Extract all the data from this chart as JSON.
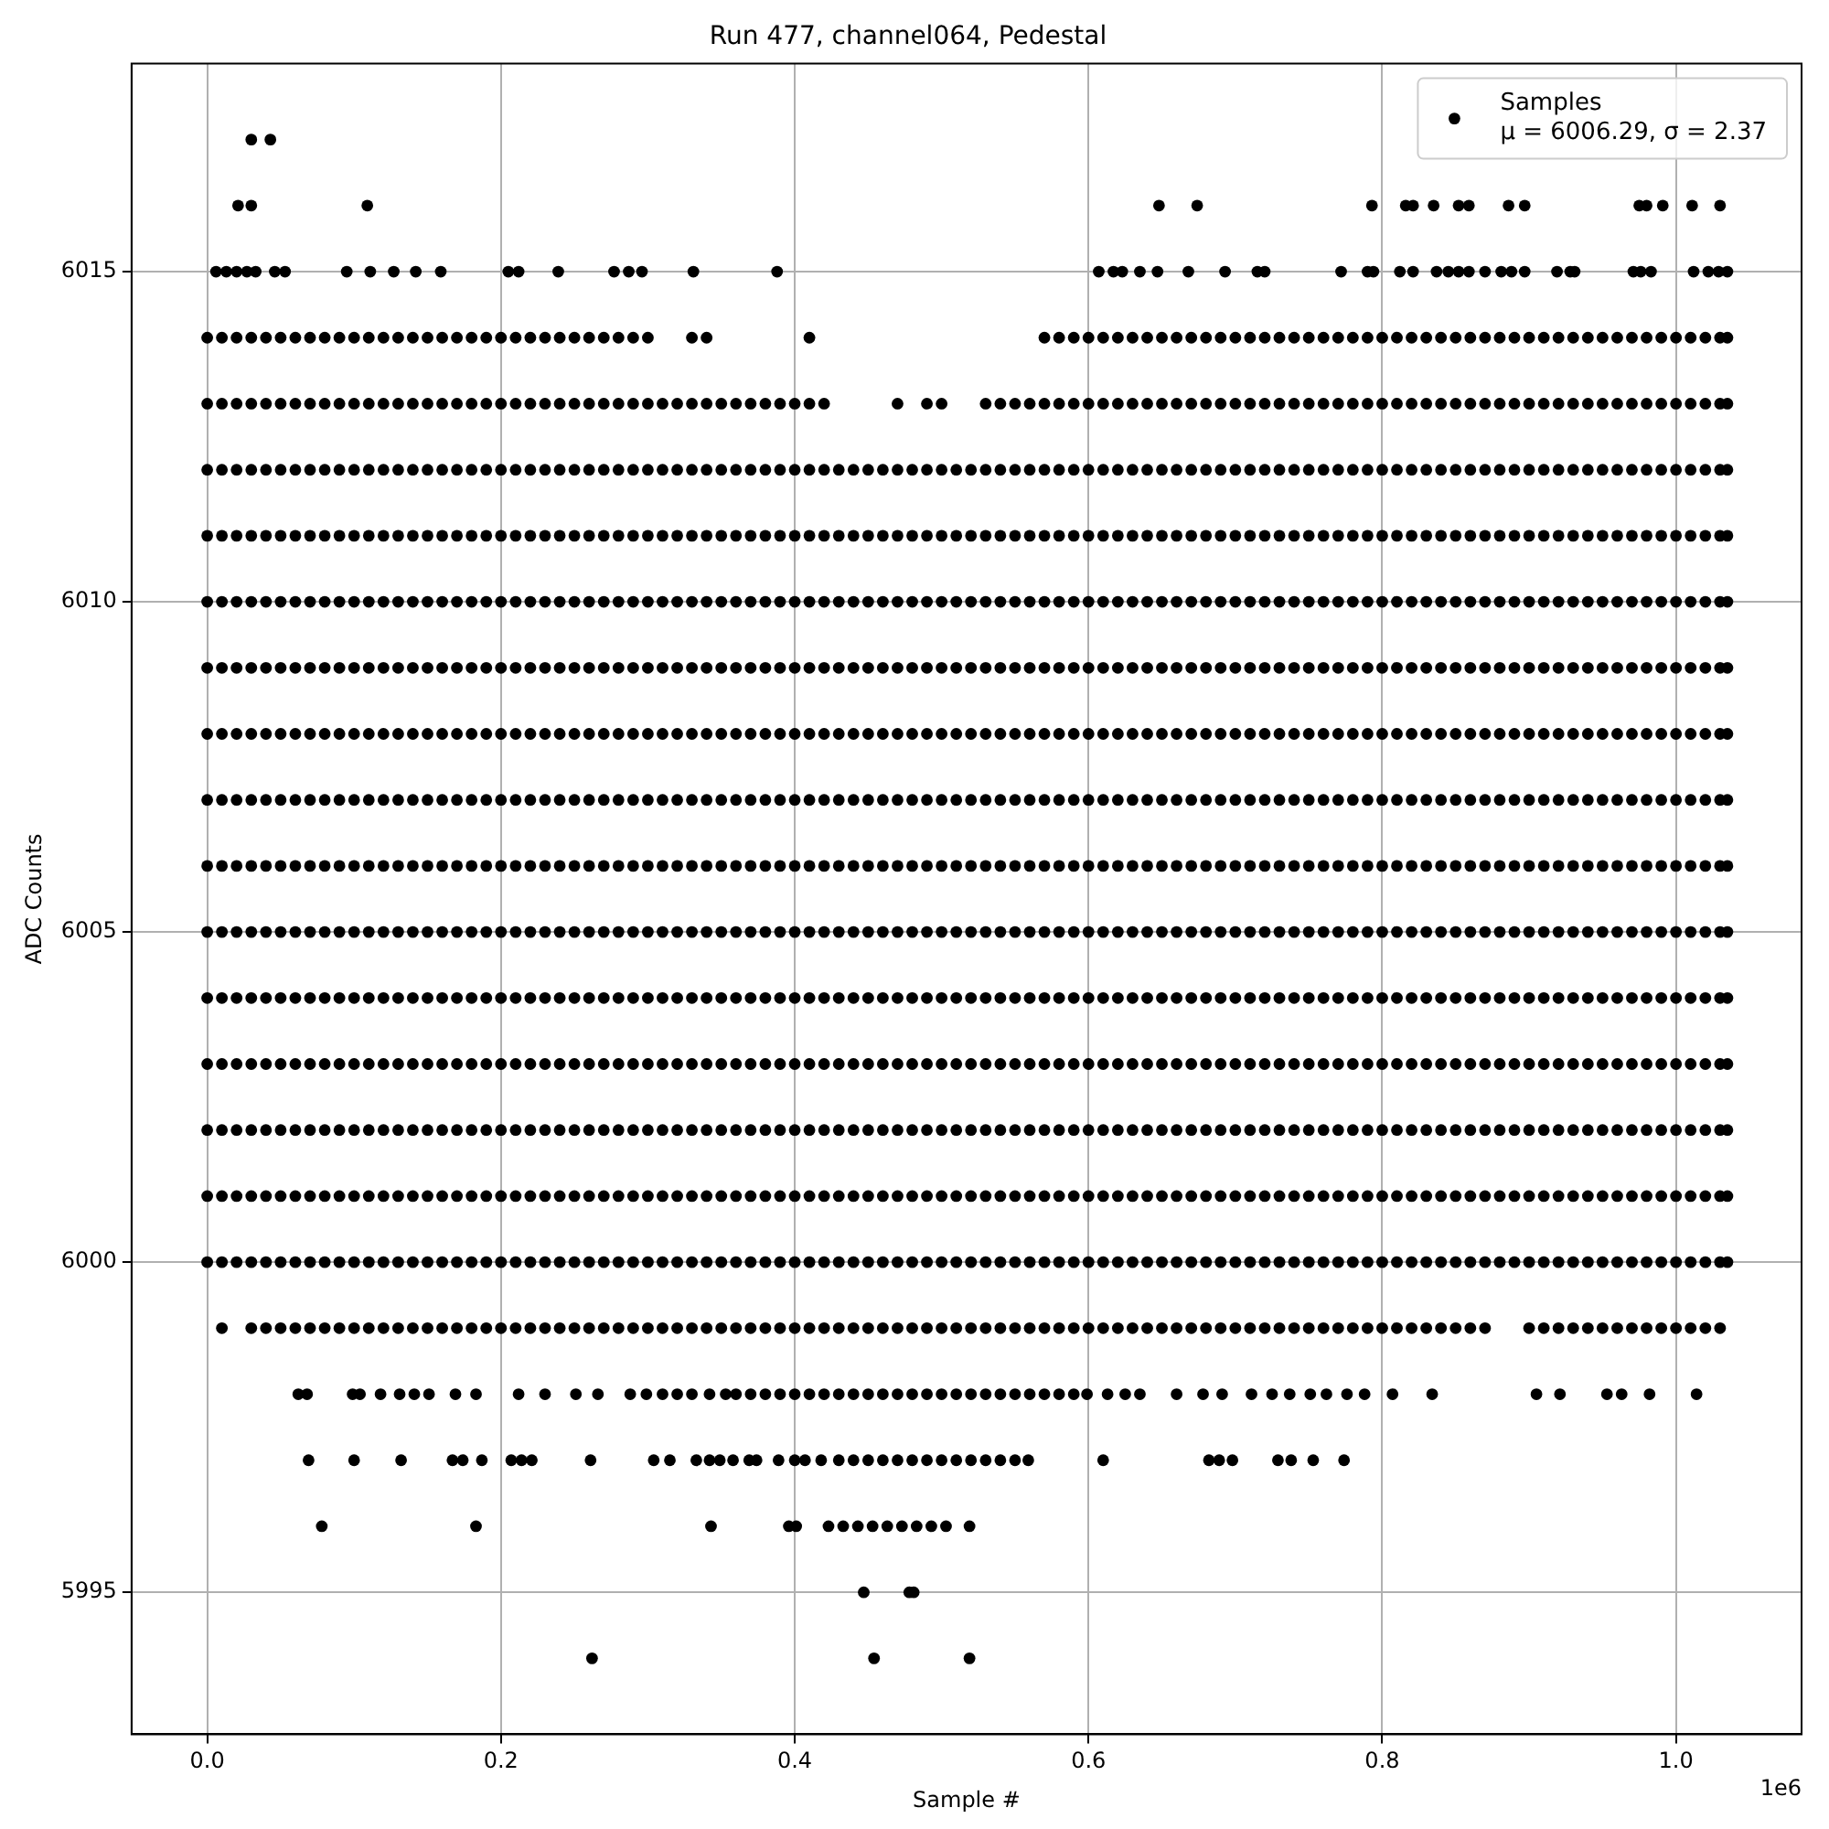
{
  "chart_data": {
    "type": "scatter",
    "title": "Run 477, channel064, Pedestal",
    "xlabel": "Sample #",
    "ylabel": "ADC Counts",
    "legend": "top right",
    "marker": "circle",
    "grid": true,
    "xlim": [
      -0.0515,
      1.0855
    ],
    "ylim": [
      5992.85,
      6018.15
    ],
    "xticks": [
      {
        "value": 0,
        "label": "0.0"
      },
      0.2,
      0.4,
      0.6,
      0.8,
      {
        "value": 1,
        "label": "1.0"
      }
    ],
    "yticks": [
      5995,
      6000,
      6005,
      6010,
      6015
    ],
    "annotations": [
      "1e6",
      "μ = 6006.29, σ = 2.37"
    ],
    "x": [
      0,
      0.01,
      0.02,
      0.03,
      0.04,
      0.05,
      0.06,
      0.07,
      0.08,
      0.09,
      0.1,
      0.11,
      0.12,
      0.13,
      0.14,
      0.15,
      0.16,
      0.17,
      0.18,
      0.19,
      0.2,
      0.21,
      0.22,
      0.23,
      0.24,
      0.25,
      0.26,
      0.27,
      0.28,
      0.29,
      0.3,
      0.31,
      0.32,
      0.33,
      0.34,
      0.35,
      0.36,
      0.37,
      0.38,
      0.39,
      0.4,
      0.41,
      0.42,
      0.43,
      0.44,
      0.45,
      0.46,
      0.47,
      0.48,
      0.49,
      0.5,
      0.51,
      0.52,
      0.53,
      0.54,
      0.55,
      0.56,
      0.57,
      0.58,
      0.59,
      0.6,
      0.61,
      0.62,
      0.63,
      0.64,
      0.65,
      0.66,
      0.67,
      0.68,
      0.69,
      0.7,
      0.71,
      0.72,
      0.73,
      0.74,
      0.75,
      0.76,
      0.77,
      0.78,
      0.79,
      0.8,
      0.81,
      0.82,
      0.83,
      0.84,
      0.85,
      0.86,
      0.87,
      0.88,
      0.89,
      0.9,
      0.91,
      0.92,
      0.93,
      0.94,
      0.95,
      0.96,
      0.97,
      0.98,
      0.99,
      1,
      1.01,
      1.02,
      1.03,
      1.035
    ],
    "series": [
      {
        "name": "Samples",
        "color": "#000000",
        "values": [
          6007,
          6007,
          6007,
          6007,
          6007,
          6007,
          6007,
          6007,
          6007,
          6007,
          6007,
          6007,
          6007,
          6007,
          6007,
          6007,
          6007,
          6007,
          6007,
          6007,
          6007,
          6007,
          6007,
          6007,
          6007,
          6007,
          6007,
          6007,
          6007,
          6007,
          6007,
          6007,
          6007,
          6007,
          6007,
          6007,
          6007,
          6007,
          6007,
          6007,
          6007,
          6007,
          6007,
          6007,
          6007,
          6007,
          6007,
          6007,
          6007,
          6007,
          6007,
          6007,
          6007,
          6007,
          6007,
          6007,
          6007,
          6007,
          6007,
          6007,
          6007,
          6007,
          6007,
          6007,
          6007,
          6007,
          6007,
          6007,
          6007,
          6007,
          6007,
          6007,
          6007,
          6007,
          6007,
          6007,
          6007,
          6007,
          6007,
          6007,
          6007,
          6007,
          6007,
          6007,
          6007,
          6007,
          6007,
          6007,
          6007,
          6007,
          6007,
          6007,
          6007,
          6007,
          6007,
          6007,
          6007,
          6007,
          6007,
          6007,
          6007,
          6007,
          6007,
          6007,
          6007
        ]
      },
      {
        "color": "#000000",
        "values": [
          6012,
          6012,
          6012,
          6012,
          6012,
          6012,
          6012,
          6012,
          6012,
          6012,
          6012,
          6012,
          6012,
          6012,
          6012,
          6012,
          6012,
          6012,
          6012,
          6012,
          6012,
          6012,
          6012,
          6012,
          6012,
          6012,
          6012,
          6012,
          6012,
          6012,
          6012,
          6012,
          6012,
          6012,
          6012,
          6012,
          6012,
          6012,
          6012,
          6012,
          6012,
          6012,
          6012,
          6012,
          6012,
          6012,
          6012,
          6012,
          6012,
          6012,
          6012,
          6012,
          6012,
          6012,
          6012,
          6012,
          6012,
          6012,
          6012,
          6012,
          6012,
          6012,
          6012,
          6012,
          6012,
          6012,
          6012,
          6012,
          6012,
          6012,
          6012,
          6012,
          6012,
          6012,
          6012,
          6012,
          6012,
          6012,
          6012,
          6012,
          6012,
          6012,
          6012,
          6012,
          6012,
          6012,
          6012,
          6012,
          6012,
          6012,
          6012,
          6012,
          6012,
          6012,
          6012,
          6012,
          6012,
          6012,
          6012,
          6012,
          6012,
          6012,
          6012,
          6012,
          6012
        ]
      },
      {
        "color": "#000000",
        "values": [
          6011,
          6011,
          6011,
          6011,
          6011,
          6011,
          6011,
          6011,
          6011,
          6011,
          6011,
          6011,
          6011,
          6011,
          6011,
          6011,
          6011,
          6011,
          6011,
          6011,
          6011,
          6011,
          6011,
          6011,
          6011,
          6011,
          6011,
          6011,
          6011,
          6011,
          6011,
          6011,
          6011,
          6011,
          6011,
          6011,
          6011,
          6011,
          6011,
          6011,
          6011,
          6011,
          6011,
          6011,
          6011,
          6011,
          6011,
          6011,
          6011,
          6011,
          6011,
          6011,
          6011,
          6011,
          6011,
          6011,
          6011,
          6011,
          6011,
          6011,
          6011,
          6011,
          6011,
          6011,
          6011,
          6011,
          6011,
          6011,
          6011,
          6011,
          6011,
          6011,
          6011,
          6011,
          6011,
          6011,
          6011,
          6011,
          6011,
          6011,
          6011,
          6011,
          6011,
          6011,
          6011,
          6011,
          6011,
          6011,
          6011,
          6011,
          6011,
          6011,
          6011,
          6011,
          6011,
          6011,
          6011,
          6011,
          6011,
          6011,
          6011,
          6011,
          6011,
          6011,
          6011
        ]
      },
      {
        "color": "#000000",
        "values": [
          6010,
          6010,
          6010,
          6010,
          6010,
          6010,
          6010,
          6010,
          6010,
          6010,
          6010,
          6010,
          6010,
          6010,
          6010,
          6010,
          6010,
          6010,
          6010,
          6010,
          6010,
          6010,
          6010,
          6010,
          6010,
          6010,
          6010,
          6010,
          6010,
          6010,
          6010,
          6010,
          6010,
          6010,
          6010,
          6010,
          6010,
          6010,
          6010,
          6010,
          6010,
          6010,
          6010,
          6010,
          6010,
          6010,
          6010,
          6010,
          6010,
          6010,
          6010,
          6010,
          6010,
          6010,
          6010,
          6010,
          6010,
          6010,
          6010,
          6010,
          6010,
          6010,
          6010,
          6010,
          6010,
          6010,
          6010,
          6010,
          6010,
          6010,
          6010,
          6010,
          6010,
          6010,
          6010,
          6010,
          6010,
          6010,
          6010,
          6010,
          6010,
          6010,
          6010,
          6010,
          6010,
          6010,
          6010,
          6010,
          6010,
          6010,
          6010,
          6010,
          6010,
          6010,
          6010,
          6010,
          6010,
          6010,
          6010,
          6010,
          6010,
          6010,
          6010,
          6010,
          6010
        ]
      },
      {
        "color": "#000000",
        "values": [
          6009,
          6009,
          6009,
          6009,
          6009,
          6009,
          6009,
          6009,
          6009,
          6009,
          6009,
          6009,
          6009,
          6009,
          6009,
          6009,
          6009,
          6009,
          6009,
          6009,
          6009,
          6009,
          6009,
          6009,
          6009,
          6009,
          6009,
          6009,
          6009,
          6009,
          6009,
          6009,
          6009,
          6009,
          6009,
          6009,
          6009,
          6009,
          6009,
          6009,
          6009,
          6009,
          6009,
          6009,
          6009,
          6009,
          6009,
          6009,
          6009,
          6009,
          6009,
          6009,
          6009,
          6009,
          6009,
          6009,
          6009,
          6009,
          6009,
          6009,
          6009,
          6009,
          6009,
          6009,
          6009,
          6009,
          6009,
          6009,
          6009,
          6009,
          6009,
          6009,
          6009,
          6009,
          6009,
          6009,
          6009,
          6009,
          6009,
          6009,
          6009,
          6009,
          6009,
          6009,
          6009,
          6009,
          6009,
          6009,
          6009,
          6009,
          6009,
          6009,
          6009,
          6009,
          6009,
          6009,
          6009,
          6009,
          6009,
          6009,
          6009,
          6009,
          6009,
          6009,
          6009
        ]
      },
      {
        "color": "#000000",
        "values": [
          6008,
          6008,
          6008,
          6008,
          6008,
          6008,
          6008,
          6008,
          6008,
          6008,
          6008,
          6008,
          6008,
          6008,
          6008,
          6008,
          6008,
          6008,
          6008,
          6008,
          6008,
          6008,
          6008,
          6008,
          6008,
          6008,
          6008,
          6008,
          6008,
          6008,
          6008,
          6008,
          6008,
          6008,
          6008,
          6008,
          6008,
          6008,
          6008,
          6008,
          6008,
          6008,
          6008,
          6008,
          6008,
          6008,
          6008,
          6008,
          6008,
          6008,
          6008,
          6008,
          6008,
          6008,
          6008,
          6008,
          6008,
          6008,
          6008,
          6008,
          6008,
          6008,
          6008,
          6008,
          6008,
          6008,
          6008,
          6008,
          6008,
          6008,
          6008,
          6008,
          6008,
          6008,
          6008,
          6008,
          6008,
          6008,
          6008,
          6008,
          6008,
          6008,
          6008,
          6008,
          6008,
          6008,
          6008,
          6008,
          6008,
          6008,
          6008,
          6008,
          6008,
          6008,
          6008,
          6008,
          6008,
          6008,
          6008,
          6008,
          6008,
          6008,
          6008,
          6008,
          6008
        ]
      },
      {
        "color": "#000000",
        "values": [
          6006,
          6006,
          6006,
          6006,
          6006,
          6006,
          6006,
          6006,
          6006,
          6006,
          6006,
          6006,
          6006,
          6006,
          6006,
          6006,
          6006,
          6006,
          6006,
          6006,
          6006,
          6006,
          6006,
          6006,
          6006,
          6006,
          6006,
          6006,
          6006,
          6006,
          6006,
          6006,
          6006,
          6006,
          6006,
          6006,
          6006,
          6006,
          6006,
          6006,
          6006,
          6006,
          6006,
          6006,
          6006,
          6006,
          6006,
          6006,
          6006,
          6006,
          6006,
          6006,
          6006,
          6006,
          6006,
          6006,
          6006,
          6006,
          6006,
          6006,
          6006,
          6006,
          6006,
          6006,
          6006,
          6006,
          6006,
          6006,
          6006,
          6006,
          6006,
          6006,
          6006,
          6006,
          6006,
          6006,
          6006,
          6006,
          6006,
          6006,
          6006,
          6006,
          6006,
          6006,
          6006,
          6006,
          6006,
          6006,
          6006,
          6006,
          6006,
          6006,
          6006,
          6006,
          6006,
          6006,
          6006,
          6006,
          6006,
          6006,
          6006,
          6006,
          6006,
          6006,
          6006
        ]
      },
      {
        "color": "#000000",
        "values": [
          6005,
          6005,
          6005,
          6005,
          6005,
          6005,
          6005,
          6005,
          6005,
          6005,
          6005,
          6005,
          6005,
          6005,
          6005,
          6005,
          6005,
          6005,
          6005,
          6005,
          6005,
          6005,
          6005,
          6005,
          6005,
          6005,
          6005,
          6005,
          6005,
          6005,
          6005,
          6005,
          6005,
          6005,
          6005,
          6005,
          6005,
          6005,
          6005,
          6005,
          6005,
          6005,
          6005,
          6005,
          6005,
          6005,
          6005,
          6005,
          6005,
          6005,
          6005,
          6005,
          6005,
          6005,
          6005,
          6005,
          6005,
          6005,
          6005,
          6005,
          6005,
          6005,
          6005,
          6005,
          6005,
          6005,
          6005,
          6005,
          6005,
          6005,
          6005,
          6005,
          6005,
          6005,
          6005,
          6005,
          6005,
          6005,
          6005,
          6005,
          6005,
          6005,
          6005,
          6005,
          6005,
          6005,
          6005,
          6005,
          6005,
          6005,
          6005,
          6005,
          6005,
          6005,
          6005,
          6005,
          6005,
          6005,
          6005,
          6005,
          6005,
          6005,
          6005,
          6005,
          6005
        ]
      },
      {
        "color": "#000000",
        "values": [
          6004,
          6004,
          6004,
          6004,
          6004,
          6004,
          6004,
          6004,
          6004,
          6004,
          6004,
          6004,
          6004,
          6004,
          6004,
          6004,
          6004,
          6004,
          6004,
          6004,
          6004,
          6004,
          6004,
          6004,
          6004,
          6004,
          6004,
          6004,
          6004,
          6004,
          6004,
          6004,
          6004,
          6004,
          6004,
          6004,
          6004,
          6004,
          6004,
          6004,
          6004,
          6004,
          6004,
          6004,
          6004,
          6004,
          6004,
          6004,
          6004,
          6004,
          6004,
          6004,
          6004,
          6004,
          6004,
          6004,
          6004,
          6004,
          6004,
          6004,
          6004,
          6004,
          6004,
          6004,
          6004,
          6004,
          6004,
          6004,
          6004,
          6004,
          6004,
          6004,
          6004,
          6004,
          6004,
          6004,
          6004,
          6004,
          6004,
          6004,
          6004,
          6004,
          6004,
          6004,
          6004,
          6004,
          6004,
          6004,
          6004,
          6004,
          6004,
          6004,
          6004,
          6004,
          6004,
          6004,
          6004,
          6004,
          6004,
          6004,
          6004,
          6004,
          6004,
          6004,
          6004
        ]
      },
      {
        "color": "#000000",
        "values": [
          6003,
          6003,
          6003,
          6003,
          6003,
          6003,
          6003,
          6003,
          6003,
          6003,
          6003,
          6003,
          6003,
          6003,
          6003,
          6003,
          6003,
          6003,
          6003,
          6003,
          6003,
          6003,
          6003,
          6003,
          6003,
          6003,
          6003,
          6003,
          6003,
          6003,
          6003,
          6003,
          6003,
          6003,
          6003,
          6003,
          6003,
          6003,
          6003,
          6003,
          6003,
          6003,
          6003,
          6003,
          6003,
          6003,
          6003,
          6003,
          6003,
          6003,
          6003,
          6003,
          6003,
          6003,
          6003,
          6003,
          6003,
          6003,
          6003,
          6003,
          6003,
          6003,
          6003,
          6003,
          6003,
          6003,
          6003,
          6003,
          6003,
          6003,
          6003,
          6003,
          6003,
          6003,
          6003,
          6003,
          6003,
          6003,
          6003,
          6003,
          6003,
          6003,
          6003,
          6003,
          6003,
          6003,
          6003,
          6003,
          6003,
          6003,
          6003,
          6003,
          6003,
          6003,
          6003,
          6003,
          6003,
          6003,
          6003,
          6003,
          6003,
          6003,
          6003,
          6003,
          6003
        ]
      },
      {
        "color": "#000000",
        "values": [
          6002,
          6002,
          6002,
          6002,
          6002,
          6002,
          6002,
          6002,
          6002,
          6002,
          6002,
          6002,
          6002,
          6002,
          6002,
          6002,
          6002,
          6002,
          6002,
          6002,
          6002,
          6002,
          6002,
          6002,
          6002,
          6002,
          6002,
          6002,
          6002,
          6002,
          6002,
          6002,
          6002,
          6002,
          6002,
          6002,
          6002,
          6002,
          6002,
          6002,
          6002,
          6002,
          6002,
          6002,
          6002,
          6002,
          6002,
          6002,
          6002,
          6002,
          6002,
          6002,
          6002,
          6002,
          6002,
          6002,
          6002,
          6002,
          6002,
          6002,
          6002,
          6002,
          6002,
          6002,
          6002,
          6002,
          6002,
          6002,
          6002,
          6002,
          6002,
          6002,
          6002,
          6002,
          6002,
          6002,
          6002,
          6002,
          6002,
          6002,
          6002,
          6002,
          6002,
          6002,
          6002,
          6002,
          6002,
          6002,
          6002,
          6002,
          6002,
          6002,
          6002,
          6002,
          6002,
          6002,
          6002,
          6002,
          6002,
          6002,
          6002,
          6002,
          6002,
          6002,
          6002
        ]
      },
      {
        "color": "#000000",
        "values": [
          6001,
          6001,
          6001,
          6001,
          6001,
          6001,
          6001,
          6001,
          6001,
          6001,
          6001,
          6001,
          6001,
          6001,
          6001,
          6001,
          6001,
          6001,
          6001,
          6001,
          6001,
          6001,
          6001,
          6001,
          6001,
          6001,
          6001,
          6001,
          6001,
          6001,
          6001,
          6001,
          6001,
          6001,
          6001,
          6001,
          6001,
          6001,
          6001,
          6001,
          6001,
          6001,
          6001,
          6001,
          6001,
          6001,
          6001,
          6001,
          6001,
          6001,
          6001,
          6001,
          6001,
          6001,
          6001,
          6001,
          6001,
          6001,
          6001,
          6001,
          6001,
          6001,
          6001,
          6001,
          6001,
          6001,
          6001,
          6001,
          6001,
          6001,
          6001,
          6001,
          6001,
          6001,
          6001,
          6001,
          6001,
          6001,
          6001,
          6001,
          6001,
          6001,
          6001,
          6001,
          6001,
          6001,
          6001,
          6001,
          6001,
          6001,
          6001,
          6001,
          6001,
          6001,
          6001,
          6001,
          6001,
          6001,
          6001,
          6001,
          6001,
          6001,
          6001,
          6001,
          6001
        ]
      },
      {
        "color": "#000000",
        "values": [
          6000,
          6000,
          6000,
          6000,
          6000,
          6000,
          6000,
          6000,
          6000,
          6000,
          6000,
          6000,
          6000,
          6000,
          6000,
          6000,
          6000,
          6000,
          6000,
          6000,
          6000,
          6000,
          6000,
          6000,
          6000,
          6000,
          6000,
          6000,
          6000,
          6000,
          6000,
          6000,
          6000,
          6000,
          6000,
          6000,
          6000,
          6000,
          6000,
          6000,
          6000,
          6000,
          6000,
          6000,
          6000,
          6000,
          6000,
          6000,
          6000,
          6000,
          6000,
          6000,
          6000,
          6000,
          6000,
          6000,
          6000,
          6000,
          6000,
          6000,
          6000,
          6000,
          6000,
          6000,
          6000,
          6000,
          6000,
          6000,
          6000,
          6000,
          6000,
          6000,
          6000,
          6000,
          6000,
          6000,
          6000,
          6000,
          6000,
          6000,
          6000,
          6000,
          6000,
          6000,
          6000,
          6000,
          6000,
          6000,
          6000,
          6000,
          6000,
          6000,
          6000,
          6000,
          6000,
          6000,
          6000,
          6000,
          6000,
          6000,
          6000,
          6000,
          6000,
          6000,
          6000
        ]
      },
      {
        "color": "#000000",
        "values": [
          6013,
          6013,
          6013,
          6013,
          6013,
          6013,
          6013,
          6013,
          6013,
          6013,
          6013,
          6013,
          6013,
          6013,
          6013,
          6013,
          6013,
          6013,
          6013,
          6013,
          6013,
          6013,
          6013,
          6013,
          6013,
          6013,
          6013,
          6013,
          6013,
          6013,
          6013,
          6013,
          6013,
          6013,
          6013,
          6013,
          6013,
          6013,
          6013,
          6013,
          6013,
          6013,
          6013,
          null,
          null,
          null,
          null,
          6013,
          null,
          6013,
          6013,
          null,
          null,
          6013,
          6013,
          6013,
          6013,
          6013,
          6013,
          6013,
          6013,
          6013,
          6013,
          6013,
          6013,
          6013,
          6013,
          6013,
          6013,
          6013,
          6013,
          6013,
          6013,
          6013,
          6013,
          6013,
          6013,
          6013,
          6013,
          6013,
          6013,
          6013,
          6013,
          6013,
          6013,
          6013,
          6013,
          6013,
          6013,
          6013,
          6013,
          6013,
          6013,
          6013,
          6013,
          6013,
          6013,
          6013,
          6013,
          6013,
          6013,
          6013,
          6013,
          6013,
          6013
        ]
      },
      {
        "color": "#000000",
        "values": [
          6014,
          6014,
          6014,
          6014,
          6014,
          6014,
          6014,
          6014,
          6014,
          6014,
          6014,
          6014,
          6014,
          6014,
          6014,
          6014,
          6014,
          6014,
          6014,
          6014,
          6014,
          6014,
          6014,
          6014,
          6014,
          6014,
          6014,
          6014,
          6014,
          6014,
          6014,
          null,
          null,
          6014,
          6014,
          null,
          null,
          null,
          null,
          null,
          null,
          6014,
          null,
          null,
          null,
          null,
          null,
          null,
          null,
          null,
          null,
          null,
          null,
          null,
          null,
          null,
          null,
          6014,
          6014,
          6014,
          6014,
          6014,
          6014,
          6014,
          6014,
          6014,
          6014,
          6014,
          6014,
          6014,
          6014,
          6014,
          6014,
          6014,
          6014,
          6014,
          6014,
          6014,
          6014,
          6014,
          6014,
          6014,
          6014,
          6014,
          6014,
          6014,
          6014,
          6014,
          6014,
          6014,
          6014,
          6014,
          6014,
          6014,
          6014,
          6014,
          6014,
          6014,
          6014,
          6014,
          6014,
          6014,
          6014,
          6014,
          6014
        ]
      },
      {
        "color": "#000000",
        "values": [
          null,
          5999,
          null,
          5999,
          5999,
          5999,
          5999,
          5999,
          5999,
          5999,
          5999,
          5999,
          5999,
          5999,
          5999,
          5999,
          5999,
          5999,
          5999,
          5999,
          5999,
          5999,
          5999,
          5999,
          5999,
          5999,
          5999,
          5999,
          5999,
          5999,
          5999,
          5999,
          5999,
          5999,
          5999,
          5999,
          5999,
          5999,
          5999,
          5999,
          5999,
          5999,
          5999,
          5999,
          5999,
          5999,
          5999,
          5999,
          5999,
          5999,
          5999,
          5999,
          5999,
          5999,
          5999,
          5999,
          5999,
          5999,
          5999,
          5999,
          5999,
          5999,
          5999,
          5999,
          5999,
          5999,
          5999,
          5999,
          5999,
          5999,
          5999,
          5999,
          5999,
          5999,
          5999,
          5999,
          5999,
          5999,
          5999,
          5999,
          5999,
          5999,
          5999,
          5999,
          5999,
          5999,
          5999,
          5999,
          null,
          null,
          5999,
          5999,
          5999,
          5999,
          5999,
          5999,
          5999,
          5999,
          5999,
          5999,
          5999,
          5999,
          5999,
          5999,
          null
        ]
      },
      {
        "color": "#000000",
        "x": [
          0.03,
          0.043
        ],
        "values": [
          6017,
          6017
        ]
      },
      {
        "color": "#000000",
        "x": [
          0.021,
          0.03,
          0.109,
          0.648,
          0.674,
          0.793,
          0.816,
          0.821,
          0.835,
          0.852,
          0.859,
          0.886,
          0.897,
          0.975,
          0.98,
          0.991,
          1.011,
          1.03
        ],
        "values": [
          6016,
          6016,
          6016,
          6016,
          6016,
          6016,
          6016,
          6016,
          6016,
          6016,
          6016,
          6016,
          6016,
          6016,
          6016,
          6016,
          6016,
          6016
        ]
      },
      {
        "color": "#000000",
        "x": [
          0.006,
          0.013,
          0.02,
          0.027,
          0.033,
          0.046,
          0.053,
          0.095,
          0.111,
          0.127,
          0.142,
          0.159,
          0.205,
          0.212,
          0.239,
          0.277,
          0.287,
          0.296,
          0.331,
          0.388,
          0.607,
          0.617,
          0.623,
          0.635,
          0.647,
          0.668,
          0.693,
          0.715,
          0.72,
          0.772,
          0.79,
          0.794,
          0.812,
          0.821,
          0.837,
          0.845,
          0.852,
          0.859,
          0.87,
          0.881,
          0.888,
          0.897,
          0.919,
          0.928,
          0.931,
          0.971,
          0.976,
          0.983,
          1.012,
          1.022,
          1.029,
          1.035
        ],
        "values": [
          6015,
          6015,
          6015,
          6015,
          6015,
          6015,
          6015,
          6015,
          6015,
          6015,
          6015,
          6015,
          6015,
          6015,
          6015,
          6015,
          6015,
          6015,
          6015,
          6015,
          6015,
          6015,
          6015,
          6015,
          6015,
          6015,
          6015,
          6015,
          6015,
          6015,
          6015,
          6015,
          6015,
          6015,
          6015,
          6015,
          6015,
          6015,
          6015,
          6015,
          6015,
          6015,
          6015,
          6015,
          6015,
          6015,
          6015,
          6015,
          6015,
          6015,
          6015,
          6015
        ]
      },
      {
        "color": "#000000",
        "x": [
          0.062,
          0.068,
          0.099,
          0.104,
          0.118,
          0.131,
          0.141,
          0.151,
          0.169,
          0.183,
          0.212,
          0.23,
          0.251,
          0.266,
          0.288,
          0.299,
          0.31,
          0.32,
          0.33,
          0.342,
          0.353,
          0.36,
          0.37,
          0.38,
          0.39,
          0.4,
          0.41,
          0.42,
          0.43,
          0.44,
          0.45,
          0.46,
          0.47,
          0.48,
          0.49,
          0.5,
          0.51,
          0.52,
          0.53,
          0.54,
          0.55,
          0.56,
          0.57,
          0.58,
          0.59,
          0.599,
          0.613,
          0.625,
          0.635,
          0.66,
          0.678,
          0.691,
          0.711,
          0.725,
          0.737,
          0.751,
          0.762,
          0.776,
          0.788,
          0.807,
          0.834,
          0.905,
          0.921,
          0.953,
          0.963,
          0.982,
          1.014
        ],
        "values": [
          5998,
          5998,
          5998,
          5998,
          5998,
          5998,
          5998,
          5998,
          5998,
          5998,
          5998,
          5998,
          5998,
          5998,
          5998,
          5998,
          5998,
          5998,
          5998,
          5998,
          5998,
          5998,
          5998,
          5998,
          5998,
          5998,
          5998,
          5998,
          5998,
          5998,
          5998,
          5998,
          5998,
          5998,
          5998,
          5998,
          5998,
          5998,
          5998,
          5998,
          5998,
          5998,
          5998,
          5998,
          5998,
          5998,
          5998,
          5998,
          5998,
          5998,
          5998,
          5998,
          5998,
          5998,
          5998,
          5998,
          5998,
          5998,
          5998,
          5998,
          5998,
          5998,
          5998,
          5998,
          5998,
          5998,
          5998
        ]
      },
      {
        "color": "#000000",
        "x": [
          0.069,
          0.1,
          0.132,
          0.167,
          0.174,
          0.187,
          0.207,
          0.214,
          0.221,
          0.261,
          0.304,
          0.315,
          0.333,
          0.342,
          0.349,
          0.358,
          0.369,
          0.374,
          0.389,
          0.4,
          0.407,
          0.418,
          0.43,
          0.44,
          0.45,
          0.46,
          0.47,
          0.48,
          0.49,
          0.5,
          0.51,
          0.52,
          0.53,
          0.54,
          0.55,
          0.559,
          0.61,
          0.682,
          0.689,
          0.698,
          0.729,
          0.738,
          0.753,
          0.774
        ],
        "values": [
          5997,
          5997,
          5997,
          5997,
          5997,
          5997,
          5997,
          5997,
          5997,
          5997,
          5997,
          5997,
          5997,
          5997,
          5997,
          5997,
          5997,
          5997,
          5997,
          5997,
          5997,
          5997,
          5997,
          5997,
          5997,
          5997,
          5997,
          5997,
          5997,
          5997,
          5997,
          5997,
          5997,
          5997,
          5997,
          5997,
          5997,
          5997,
          5997,
          5997,
          5997,
          5997,
          5997,
          5997
        ]
      },
      {
        "color": "#000000",
        "x": [
          0.078,
          0.183,
          0.343,
          0.396,
          0.401,
          0.423,
          0.433,
          0.443,
          0.453,
          0.463,
          0.473,
          0.483,
          0.493,
          0.503,
          0.519
        ],
        "values": [
          5996,
          5996,
          5996,
          5996,
          5996,
          5996,
          5996,
          5996,
          5996,
          5996,
          5996,
          5996,
          5996,
          5996,
          5996
        ]
      },
      {
        "color": "#000000",
        "x": [
          0.447,
          0.478,
          0.481
        ],
        "values": [
          5995,
          5995,
          5995
        ]
      },
      {
        "color": "#000000",
        "x": [
          0.262,
          0.454,
          0.519
        ],
        "values": [
          5994,
          5994,
          5994
        ]
      }
    ]
  }
}
